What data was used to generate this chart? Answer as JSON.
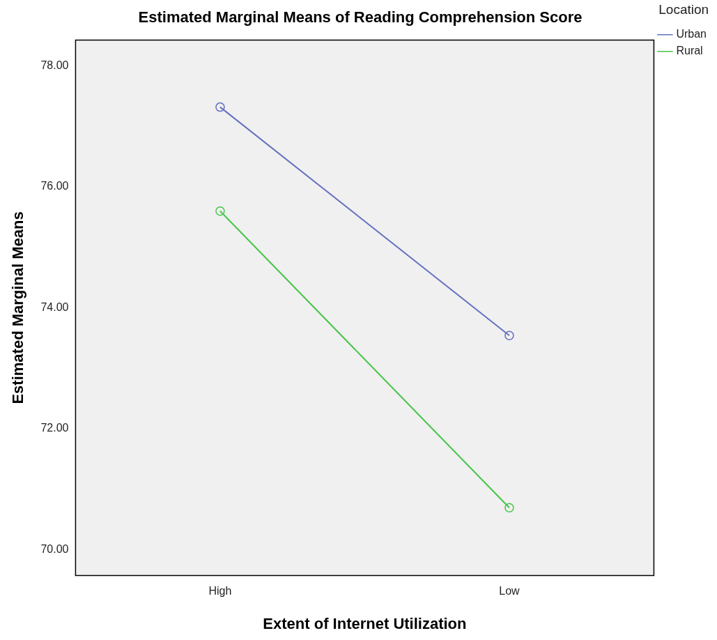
{
  "chart_data": {
    "type": "line",
    "title": "Estimated Marginal Means of Reading Comprehension Score",
    "xlabel": "Extent of Internet Utilization",
    "ylabel": "Estimated Marginal Means",
    "legend_title": "Location",
    "categories": [
      "High",
      "Low"
    ],
    "series": [
      {
        "name": "Urban",
        "color": "#6470c0",
        "values": [
          77.32,
          73.54
        ]
      },
      {
        "name": "Rural",
        "color": "#47c447",
        "values": [
          75.6,
          70.69
        ]
      }
    ],
    "ylim": [
      69.57,
      78.43
    ],
    "yticks": [
      {
        "value": 70,
        "label": "70.00"
      },
      {
        "value": 72,
        "label": "72.00"
      },
      {
        "value": 74,
        "label": "74.00"
      },
      {
        "value": 76,
        "label": "76.00"
      },
      {
        "value": 78,
        "label": "78.00"
      }
    ],
    "grid": false,
    "legend": "top right",
    "marker": "circle",
    "line_style": "solid"
  }
}
